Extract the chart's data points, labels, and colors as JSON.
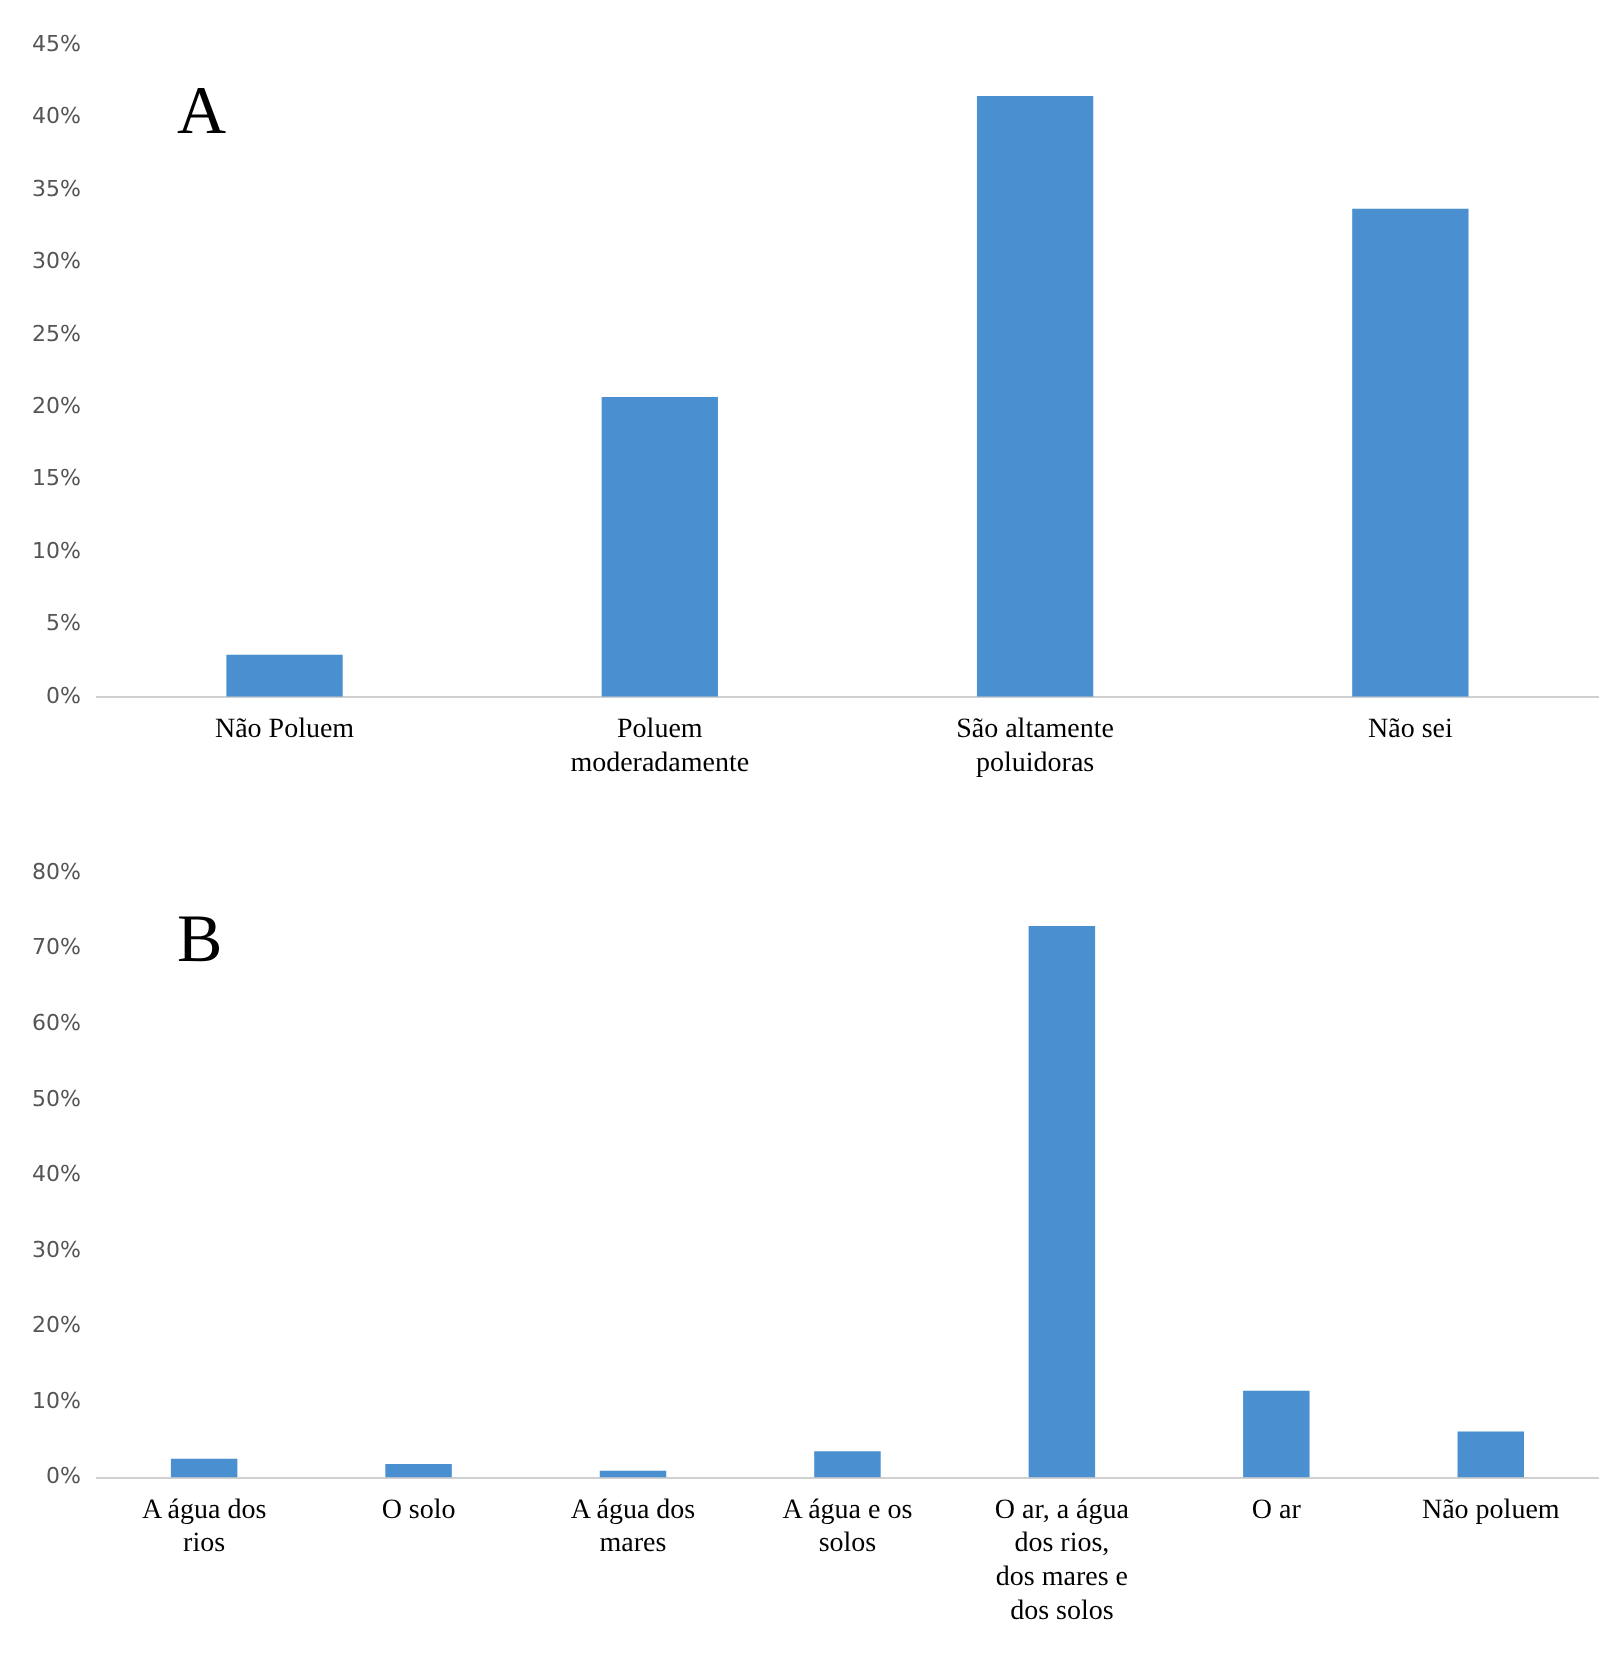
{
  "chart_data": [
    {
      "type": "bar",
      "annotations": [
        "A"
      ],
      "categories": [
        "Não Poluem",
        "Poluem moderadamente",
        "São altamente poluidoras",
        "Não sei"
      ],
      "values": [
        2.9,
        20.7,
        41.5,
        33.7
      ],
      "color": "#4a90d0",
      "ylim": [
        0,
        45
      ],
      "yticks": [
        {
          "value": 0,
          "label": "0%"
        },
        {
          "value": 5,
          "label": "5%"
        },
        {
          "value": 10,
          "label": "10%"
        },
        {
          "value": 15,
          "label": "15%"
        },
        {
          "value": 20,
          "label": "20%"
        },
        {
          "value": 25,
          "label": "25%"
        },
        {
          "value": 30,
          "label": "30%"
        },
        {
          "value": 35,
          "label": "35%"
        },
        {
          "value": 40,
          "label": "40%"
        },
        {
          "value": 45,
          "label": "45%"
        }
      ],
      "grid": false
    },
    {
      "type": "bar",
      "annotations": [
        "B"
      ],
      "categories": [
        "A água dos rios",
        "O solo",
        "A água dos mares",
        "A água e os solos",
        "O ar, a água dos rios, dos mares e dos solos",
        "O ar",
        "Não poluem"
      ],
      "values": [
        2.5,
        1.8,
        0.9,
        3.5,
        73,
        11.5,
        6.1
      ],
      "color": "#4a90d0",
      "ylim": [
        0,
        80
      ],
      "yticks": [
        {
          "value": 0,
          "label": "0%"
        },
        {
          "value": 10,
          "label": "10%"
        },
        {
          "value": 20,
          "label": "20%"
        },
        {
          "value": 30,
          "label": "30%"
        },
        {
          "value": 40,
          "label": "40%"
        },
        {
          "value": 50,
          "label": "50%"
        },
        {
          "value": 60,
          "label": "60%"
        },
        {
          "value": 70,
          "label": "70%"
        },
        {
          "value": 80,
          "label": "80%"
        }
      ],
      "grid": false
    }
  ]
}
